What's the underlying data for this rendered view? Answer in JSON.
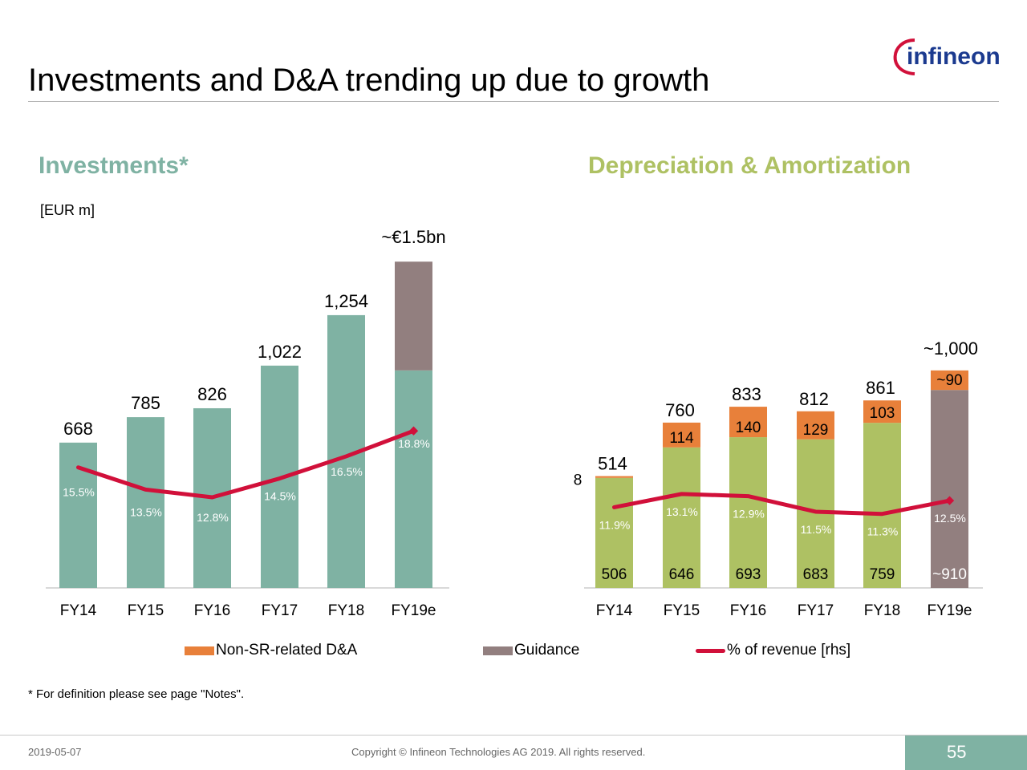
{
  "title": "Investments and D&A trending up due to growth",
  "logo_text": "infineon",
  "investments_heading": "Investments*",
  "da_heading": "Depreciation & Amortization",
  "unit_label": "[EUR m]",
  "legend": {
    "non_sr": "Non-SR-related D&A",
    "guidance": "Guidance",
    "revenue": "% of revenue [rhs]"
  },
  "footnote": "* For definition please see page \"Notes\".",
  "footer": {
    "date": "2019-05-07",
    "copyright": "Copyright © Infineon Technologies AG 2019. All rights reserved.",
    "page_number": "55"
  },
  "colors": {
    "investments": "#7fb2a3",
    "da_base": "#aec163",
    "non_sr": "#e8803a",
    "guidance": "#927f7f",
    "revenue_line": "#d1103a",
    "logo": "#1b3a8f",
    "logo_accent": "#d1103a",
    "page_box": "#7fb2a3"
  },
  "chart_data": [
    {
      "type": "bar",
      "title": "Investments*",
      "ylabel": "[EUR m]",
      "categories": [
        "FY14",
        "FY15",
        "FY16",
        "FY17",
        "FY18",
        "FY19e"
      ],
      "series": [
        {
          "name": "Investments",
          "values": [
            668,
            785,
            826,
            1022,
            1254,
            1000
          ]
        },
        {
          "name": "Guidance",
          "values": [
            0,
            0,
            0,
            0,
            0,
            500
          ]
        }
      ],
      "value_labels": [
        "668",
        "785",
        "826",
        "1,022",
        "1,254",
        "~€1.5bn"
      ],
      "revenue_pct": [
        15.5,
        13.5,
        12.8,
        14.5,
        16.5,
        18.8
      ],
      "revenue_pct_labels": [
        "15.5%",
        "13.5%",
        "12.8%",
        "14.5%",
        "16.5%",
        "18.8%"
      ],
      "ylim": [
        0,
        1600
      ]
    },
    {
      "type": "bar",
      "title": "Depreciation & Amortization",
      "categories": [
        "FY14",
        "FY15",
        "FY16",
        "FY17",
        "FY18",
        "FY19e"
      ],
      "series": [
        {
          "name": "D&A",
          "values": [
            506,
            646,
            693,
            683,
            759,
            0
          ]
        },
        {
          "name": "Guidance",
          "values": [
            0,
            0,
            0,
            0,
            0,
            910
          ]
        },
        {
          "name": "Non-SR-related D&A",
          "values": [
            8,
            114,
            140,
            129,
            103,
            90
          ]
        }
      ],
      "base_labels": [
        "506",
        "646",
        "693",
        "683",
        "759",
        "~910"
      ],
      "non_sr_labels": [
        "8",
        "114",
        "140",
        "129",
        "103",
        "~90"
      ],
      "total_labels": [
        "514",
        "760",
        "833",
        "812",
        "861",
        "~1,000"
      ],
      "revenue_pct": [
        11.9,
        13.1,
        12.9,
        11.5,
        11.3,
        12.5
      ],
      "revenue_pct_labels": [
        "11.9%",
        "13.1%",
        "12.9%",
        "11.5%",
        "11.3%",
        "12.5%"
      ],
      "ylim": [
        0,
        1600
      ]
    }
  ]
}
